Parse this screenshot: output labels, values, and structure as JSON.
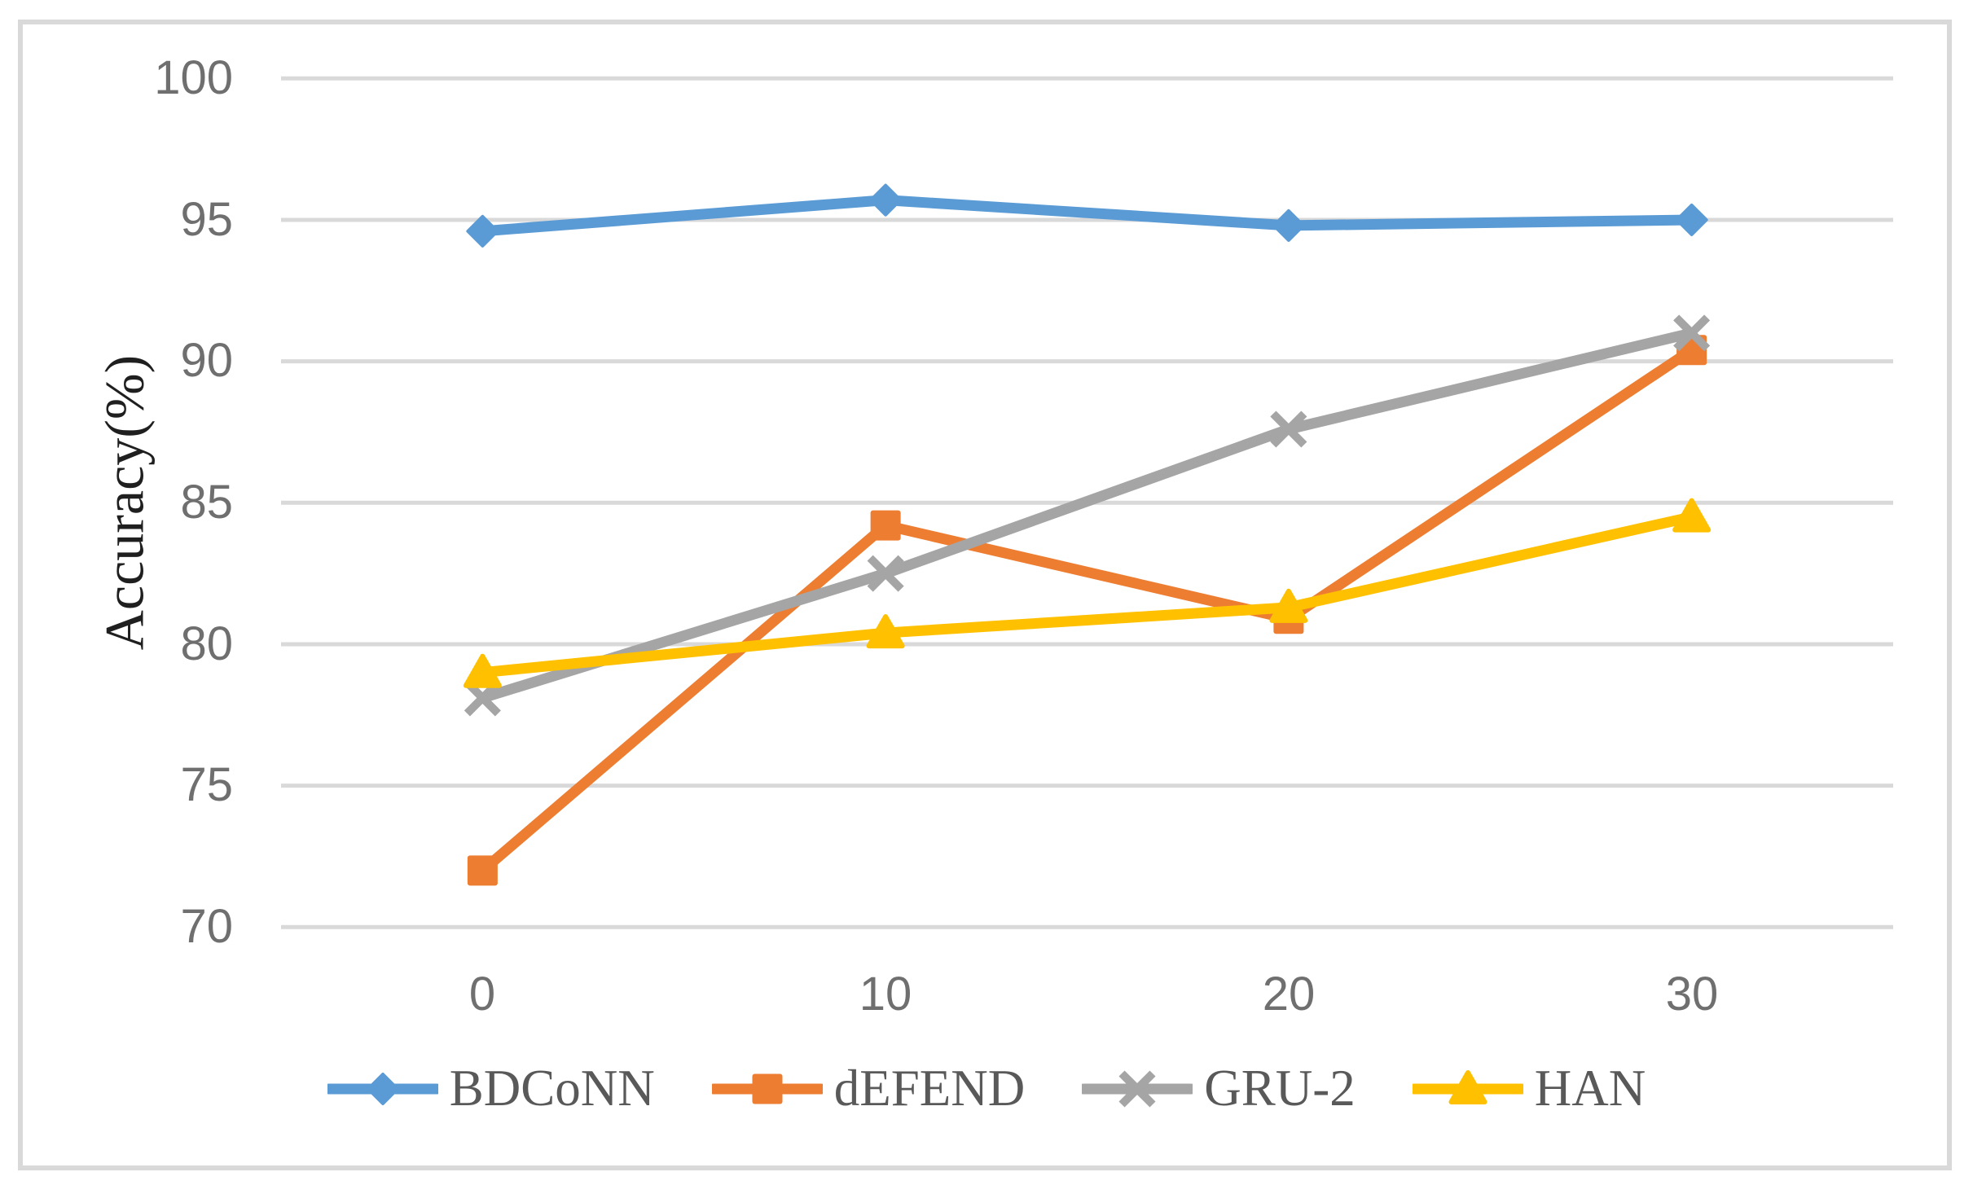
{
  "chart_data": {
    "type": "line",
    "title": "",
    "xlabel": "",
    "ylabel": "Accuracy(%)",
    "x": [
      0,
      10,
      20,
      30
    ],
    "xtick_labels": [
      "0",
      "10",
      "20",
      "30"
    ],
    "ytick_values": [
      100,
      95,
      90,
      85,
      80,
      75,
      70
    ],
    "ytick_labels": [
      "100",
      "95",
      "90",
      "85",
      "80",
      "75",
      "70"
    ],
    "ylim": [
      70,
      100
    ],
    "ytick_step": 5,
    "grid": "horizontal-only",
    "legend_position": "bottom",
    "series": [
      {
        "name": "BDCoNN",
        "marker": "diamond",
        "color": "#5B9BD5",
        "values": [
          94.6,
          95.7,
          94.8,
          95.0
        ]
      },
      {
        "name": "dEFEND",
        "marker": "square",
        "color": "#ED7D31",
        "values": [
          72.0,
          84.2,
          80.9,
          90.4
        ]
      },
      {
        "name": "GRU-2",
        "marker": "x",
        "color": "#A5A5A5",
        "values": [
          78.1,
          82.5,
          87.6,
          91.0
        ]
      },
      {
        "name": "HAN",
        "marker": "triangle",
        "color": "#FFC000",
        "values": [
          79.0,
          80.4,
          81.3,
          84.5
        ]
      }
    ],
    "colors": {
      "background": "#FFFFFF",
      "gridline": "#D9D9D9",
      "outer_border": "#D9D9D9",
      "tick_text": "#6F6F6F",
      "axis_title_text": "#1F1F1F",
      "legend_text": "#595959"
    }
  }
}
